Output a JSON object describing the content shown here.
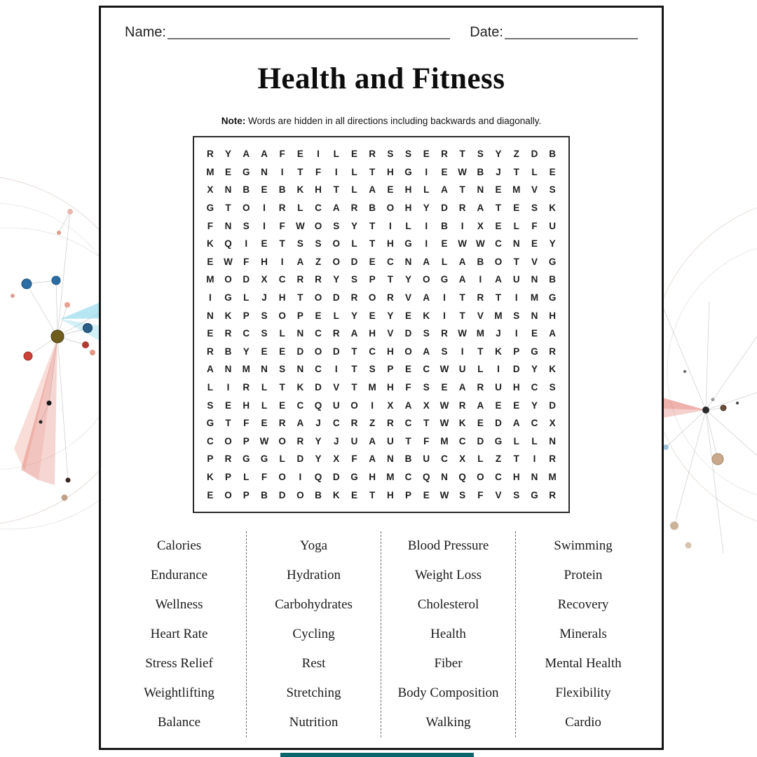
{
  "page": {
    "header": {
      "name_label": "Name:",
      "name_line": "______________________________________",
      "date_label": "Date:",
      "date_line": "__________________"
    },
    "title": "Health and Fitness",
    "note": {
      "bold": "Note:",
      "text": "Words are hidden in all directions including backwards and diagonally."
    },
    "grid": {
      "rows": [
        "RYAAFEILERSSERTSYZDB",
        "MEGNITFILTHGIEWBJTLE",
        "XNBEBKHTLAEHLATNEMVS",
        "GTOIRLCARBOHYDRATESK",
        "FNSIFWOSYTILIBIXELFU",
        "KQIETSSOLTHGIEWWCNEY",
        "EWFHIAZODECNALABOTVG",
        "MODXCRRYSPTYOGAIAUNB",
        "IGLJHTODRORVAITRTIMG",
        "NKPSOPELYEYEKITVMSNH",
        "ERCSLNCRAHVDSRWMJIEA",
        "RBYEEDODTCHOASITKPGR",
        "ANMNSNCITSPECWULIDYK",
        "LIRLTKDVTMHFSEARUHCS",
        "SEHLECQUOIXAXWRAEEYD",
        "GTFERAJCRZRCTWKEDACX",
        "COPWORYJUAUTFMCDGLLN",
        "PRGGLDYXFANBUCXLZTIR",
        "KPLFOIQDGHMCQNQOCHNM",
        "EOPBDOBKETHPEWSFVSGR"
      ]
    },
    "words": {
      "columns": [
        [
          "Calories",
          "Endurance",
          "Wellness",
          "Heart Rate",
          "Stress Relief",
          "Weightlifting",
          "Balance"
        ],
        [
          "Yoga",
          "Hydration",
          "Carbohydrates",
          "Cycling",
          "Rest",
          "Stretching",
          "Nutrition"
        ],
        [
          "Blood Pressure",
          "Weight Loss",
          "Cholesterol",
          "Health",
          "Fiber",
          "Body Composition",
          "Walking"
        ],
        [
          "Swimming",
          "Protein",
          "Recovery",
          "Minerals",
          "Mental Health",
          "Flexibility",
          "Cardio"
        ]
      ]
    }
  },
  "decor": {
    "accent_teal": "#0b666b",
    "colors": {
      "node_blue": "#2b6ea5",
      "node_olive": "#6f5d1d",
      "node_red": "#cc4438",
      "node_salmon": "#e99383",
      "node_tan": "#c9a98b",
      "streak_red": "#d74637",
      "streak_cyan": "#6ecde6"
    }
  }
}
